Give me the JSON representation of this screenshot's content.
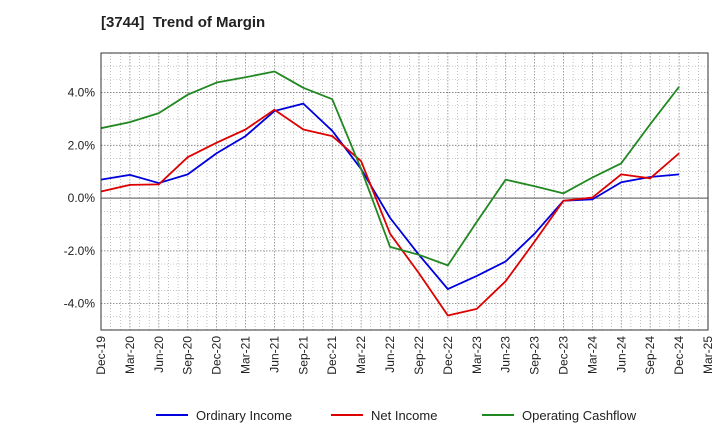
{
  "chart_data": {
    "type": "line",
    "title": "[3744]  Trend of Margin",
    "x": [
      "Dec-19",
      "Mar-20",
      "Jun-20",
      "Sep-20",
      "Dec-20",
      "Mar-21",
      "Jun-21",
      "Sep-21",
      "Dec-21",
      "Mar-22",
      "Jun-22",
      "Sep-22",
      "Dec-22",
      "Mar-23",
      "Jun-23",
      "Sep-23",
      "Dec-23",
      "Mar-24",
      "Jun-24",
      "Sep-24",
      "Dec-24"
    ],
    "x_ticks": [
      "Dec-19",
      "Mar-20",
      "Jun-20",
      "Sep-20",
      "Dec-20",
      "Mar-21",
      "Jun-21",
      "Sep-21",
      "Dec-21",
      "Mar-22",
      "Jun-22",
      "Sep-22",
      "Dec-22",
      "Mar-23",
      "Jun-23",
      "Sep-23",
      "Dec-23",
      "Mar-24",
      "Jun-24",
      "Sep-24",
      "Dec-24",
      "Mar-25"
    ],
    "y_ticks": [
      "4.0%",
      "2.0%",
      "0.0%",
      "-2.0%",
      "-4.0%"
    ],
    "y_tick_values": [
      4,
      2,
      0,
      -2,
      -4
    ],
    "ylim": [
      -5.0,
      5.5
    ],
    "grid": true,
    "legend_position": "bottom",
    "series": [
      {
        "name": "Ordinary Income",
        "color": "#0000dd",
        "values": [
          0.7,
          0.88,
          0.57,
          0.9,
          1.7,
          2.35,
          3.3,
          3.58,
          2.55,
          1.1,
          -0.75,
          -2.15,
          -3.45,
          -2.95,
          -2.4,
          -1.35,
          -0.1,
          -0.05,
          0.6,
          0.8,
          0.9
        ]
      },
      {
        "name": "Net Income",
        "color": "#dd0000",
        "values": [
          0.25,
          0.5,
          0.52,
          1.55,
          2.1,
          2.6,
          3.35,
          2.6,
          2.35,
          1.4,
          -1.35,
          -2.85,
          -4.45,
          -4.2,
          -3.15,
          -1.65,
          -0.1,
          0.02,
          0.9,
          0.75,
          1.7
        ]
      },
      {
        "name": "Operating Cashflow",
        "color": "#228822",
        "values": [
          2.65,
          2.88,
          3.22,
          3.92,
          4.38,
          4.58,
          4.8,
          4.18,
          3.75,
          1.1,
          -1.85,
          -2.15,
          -2.55,
          -0.9,
          0.7,
          0.45,
          0.18,
          0.78,
          1.32,
          2.8,
          4.22
        ]
      }
    ]
  }
}
